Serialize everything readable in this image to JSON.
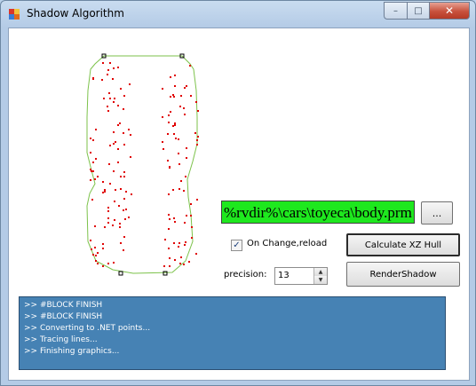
{
  "window": {
    "title": "Shadow Algorithm",
    "min_glyph": "–",
    "max_glyph": "□",
    "close_glyph": "✕"
  },
  "file": {
    "path": "%rvdir%\\cars\\toyeca\\body.prm",
    "browse_label": "..."
  },
  "options": {
    "reload_checked": true,
    "check_glyph": "✓",
    "reload_label": "On Change,reload",
    "precision_label": "precision:",
    "precision_value": "13",
    "spin_up": "▲",
    "spin_down": "▼"
  },
  "buttons": {
    "calculate": "Calculate XZ Hull",
    "render": "RenderShadow"
  },
  "log": [
    ">>  #BLOCK FINISH",
    ">>  #BLOCK FINISH",
    ">> Converting to .NET points...",
    ">> Tracing lines...",
    ">> Finishing graphics..."
  ],
  "colors": {
    "hull": "#7cc24a",
    "point": "#e00000",
    "hull_vertex": "#000000",
    "path_bg": "#1ee81e",
    "log_bg": "#4682b4"
  }
}
